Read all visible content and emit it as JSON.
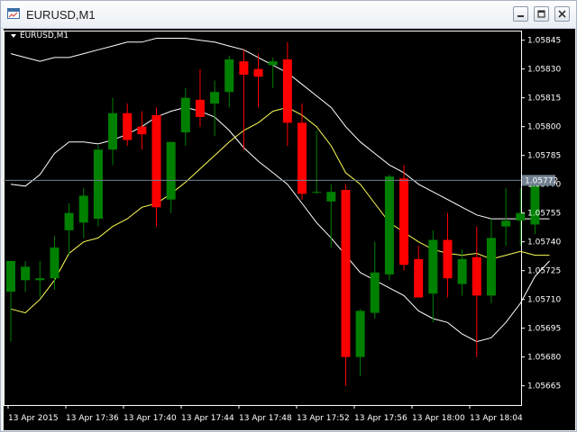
{
  "window": {
    "title": "EURUSD,M1",
    "icon": "chart-window-icon",
    "controls": [
      "minimize-icon",
      "maximize-icon",
      "close-icon"
    ]
  },
  "chart": {
    "symbol_label": "EURUSD,M1",
    "bid_line_value": "1.05772",
    "colors": {
      "background": "#000000",
      "bull": "#008000",
      "bear": "#ff0000",
      "indicator_white": "#ffffff",
      "indicator_yellow": "#ffff55",
      "axis_text": "#ffffff",
      "bid_line": "#708090"
    }
  },
  "chart_data": {
    "type": "candlestick",
    "y_ticks": [
      "1.05845",
      "1.05830",
      "1.05815",
      "1.05800",
      "1.05785",
      "1.05770",
      "1.05755",
      "1.05740",
      "1.05725",
      "1.05710",
      "1.05695",
      "1.05680",
      "1.05665"
    ],
    "x_ticks": [
      "13 Apr 2015",
      "13 Apr 17:36",
      "13 Apr 17:40",
      "13 Apr 17:44",
      "13 Apr 17:48",
      "13 Apr 17:52",
      "13 Apr 17:56",
      "13 Apr 18:00",
      "13 Apr 18:04"
    ],
    "ylim": [
      1.05655,
      1.0585
    ],
    "candles": [
      {
        "o": 1.05714,
        "h": 1.0573,
        "l": 1.05688,
        "c": 1.0573
      },
      {
        "o": 1.0572,
        "h": 1.0573,
        "l": 1.05714,
        "c": 1.05727
      },
      {
        "o": 1.0572,
        "h": 1.0573,
        "l": 1.05711,
        "c": 1.05721
      },
      {
        "o": 1.05721,
        "h": 1.05743,
        "l": 1.05715,
        "c": 1.05737
      },
      {
        "o": 1.05746,
        "h": 1.0576,
        "l": 1.05733,
        "c": 1.05755
      },
      {
        "o": 1.0575,
        "h": 1.05768,
        "l": 1.05742,
        "c": 1.05764
      },
      {
        "o": 1.05752,
        "h": 1.0579,
        "l": 1.05748,
        "c": 1.05788
      },
      {
        "o": 1.05788,
        "h": 1.05815,
        "l": 1.0578,
        "c": 1.05807
      },
      {
        "o": 1.05807,
        "h": 1.05812,
        "l": 1.0579,
        "c": 1.05793
      },
      {
        "o": 1.058,
        "h": 1.05808,
        "l": 1.05788,
        "c": 1.05796
      },
      {
        "o": 1.05806,
        "h": 1.0581,
        "l": 1.05748,
        "c": 1.05758
      },
      {
        "o": 1.05762,
        "h": 1.05792,
        "l": 1.05755,
        "c": 1.05792
      },
      {
        "o": 1.05797,
        "h": 1.0582,
        "l": 1.0579,
        "c": 1.05815
      },
      {
        "o": 1.05814,
        "h": 1.0583,
        "l": 1.058,
        "c": 1.05805
      },
      {
        "o": 1.05812,
        "h": 1.05824,
        "l": 1.05795,
        "c": 1.05818
      },
      {
        "o": 1.05818,
        "h": 1.05837,
        "l": 1.0581,
        "c": 1.05835
      },
      {
        "o": 1.05834,
        "h": 1.0584,
        "l": 1.05788,
        "c": 1.05827
      },
      {
        "o": 1.0583,
        "h": 1.05838,
        "l": 1.0581,
        "c": 1.05826
      },
      {
        "o": 1.05832,
        "h": 1.05836,
        "l": 1.0582,
        "c": 1.05834
      },
      {
        "o": 1.05835,
        "h": 1.05844,
        "l": 1.0579,
        "c": 1.05802
      },
      {
        "o": 1.05802,
        "h": 1.05812,
        "l": 1.05762,
        "c": 1.05765
      },
      {
        "o": 1.05766,
        "h": 1.05798,
        "l": 1.05765,
        "c": 1.05766
      },
      {
        "o": 1.05761,
        "h": 1.0577,
        "l": 1.05737,
        "c": 1.05766
      },
      {
        "o": 1.05767,
        "h": 1.0577,
        "l": 1.05665,
        "c": 1.0568
      },
      {
        "o": 1.0568,
        "h": 1.05705,
        "l": 1.0567,
        "c": 1.05704
      },
      {
        "o": 1.05703,
        "h": 1.0574,
        "l": 1.057,
        "c": 1.05724
      },
      {
        "o": 1.05723,
        "h": 1.05775,
        "l": 1.0572,
        "c": 1.05774
      },
      {
        "o": 1.05773,
        "h": 1.0578,
        "l": 1.05725,
        "c": 1.05728
      },
      {
        "o": 1.05731,
        "h": 1.05738,
        "l": 1.05711,
        "c": 1.05711
      },
      {
        "o": 1.05713,
        "h": 1.05746,
        "l": 1.05698,
        "c": 1.05741
      },
      {
        "o": 1.05741,
        "h": 1.05755,
        "l": 1.05711,
        "c": 1.05721
      },
      {
        "o": 1.05718,
        "h": 1.05736,
        "l": 1.05712,
        "c": 1.05731
      },
      {
        "o": 1.05732,
        "h": 1.05748,
        "l": 1.0568,
        "c": 1.05712
      },
      {
        "o": 1.05712,
        "h": 1.05752,
        "l": 1.05708,
        "c": 1.05742
      },
      {
        "o": 1.05748,
        "h": 1.05768,
        "l": 1.05738,
        "c": 1.05751
      },
      {
        "o": 1.05751,
        "h": 1.05768,
        "l": 1.05738,
        "c": 1.05755
      },
      {
        "o": 1.05749,
        "h": 1.05773,
        "l": 1.05744,
        "c": 1.05773
      }
    ],
    "indicators": [
      {
        "color": "#ffffff",
        "points": [
          [
            0,
            1.0577
          ],
          [
            1,
            1.05769
          ],
          [
            2,
            1.05775
          ],
          [
            3,
            1.05786
          ],
          [
            4,
            1.05792
          ],
          [
            5,
            1.05792
          ],
          [
            6,
            1.05791
          ],
          [
            7,
            1.05793
          ],
          [
            8,
            1.05796
          ],
          [
            9,
            1.058
          ],
          [
            10,
            1.05805
          ],
          [
            11,
            1.05808
          ],
          [
            12,
            1.0581
          ],
          [
            13,
            1.05808
          ],
          [
            14,
            1.05805
          ],
          [
            15,
            1.05798
          ],
          [
            16,
            1.05789
          ],
          [
            17,
            1.05782
          ],
          [
            18,
            1.05776
          ],
          [
            19,
            1.0577
          ],
          [
            20,
            1.0576
          ],
          [
            21,
            1.0575
          ],
          [
            22,
            1.05742
          ],
          [
            23,
            1.05733
          ],
          [
            24,
            1.05724
          ],
          [
            25,
            1.0572
          ],
          [
            26,
            1.05716
          ],
          [
            27,
            1.05712
          ],
          [
            28,
            1.05704
          ],
          [
            29,
            1.057
          ],
          [
            30,
            1.05698
          ],
          [
            31,
            1.05692
          ],
          [
            32,
            1.05688
          ],
          [
            33,
            1.0569
          ],
          [
            34,
            1.05698
          ],
          [
            35,
            1.05708
          ],
          [
            36,
            1.05722
          ],
          [
            37,
            1.0573
          ]
        ]
      },
      {
        "color": "#ffff55",
        "points": [
          [
            0,
            1.05705
          ],
          [
            1,
            1.05703
          ],
          [
            2,
            1.0571
          ],
          [
            3,
            1.0572
          ],
          [
            4,
            1.05734
          ],
          [
            5,
            1.0574
          ],
          [
            6,
            1.05742
          ],
          [
            7,
            1.05748
          ],
          [
            8,
            1.05752
          ],
          [
            9,
            1.05758
          ],
          [
            10,
            1.0576
          ],
          [
            11,
            1.05765
          ],
          [
            12,
            1.05771
          ],
          [
            13,
            1.05778
          ],
          [
            14,
            1.05785
          ],
          [
            15,
            1.05792
          ],
          [
            16,
            1.05798
          ],
          [
            17,
            1.05802
          ],
          [
            18,
            1.05808
          ],
          [
            19,
            1.0581
          ],
          [
            20,
            1.05806
          ],
          [
            21,
            1.058
          ],
          [
            22,
            1.0579
          ],
          [
            23,
            1.05776
          ],
          [
            24,
            1.0577
          ],
          [
            25,
            1.0576
          ],
          [
            26,
            1.0575
          ],
          [
            27,
            1.05745
          ],
          [
            28,
            1.0574
          ],
          [
            29,
            1.05736
          ],
          [
            30,
            1.05734
          ],
          [
            31,
            1.05733
          ],
          [
            32,
            1.05734
          ],
          [
            33,
            1.05731
          ],
          [
            34,
            1.05733
          ],
          [
            35,
            1.05735
          ],
          [
            36,
            1.05733
          ],
          [
            37,
            1.05733
          ]
        ]
      },
      {
        "color": "#ffffff",
        "points": [
          [
            0,
            1.05838
          ],
          [
            1,
            1.05836
          ],
          [
            2,
            1.05834
          ],
          [
            3,
            1.05836
          ],
          [
            4,
            1.05836
          ],
          [
            5,
            1.05838
          ],
          [
            6,
            1.0584
          ],
          [
            7,
            1.05842
          ],
          [
            8,
            1.05844
          ],
          [
            9,
            1.05844
          ],
          [
            10,
            1.05846
          ],
          [
            11,
            1.05846
          ],
          [
            12,
            1.05846
          ],
          [
            13,
            1.05845
          ],
          [
            14,
            1.05844
          ],
          [
            15,
            1.05842
          ],
          [
            16,
            1.0584
          ],
          [
            17,
            1.05836
          ],
          [
            18,
            1.05832
          ],
          [
            19,
            1.05828
          ],
          [
            20,
            1.05822
          ],
          [
            21,
            1.05816
          ],
          [
            22,
            1.0581
          ],
          [
            23,
            1.058
          ],
          [
            24,
            1.05792
          ],
          [
            25,
            1.05786
          ],
          [
            26,
            1.0578
          ],
          [
            27,
            1.05776
          ],
          [
            28,
            1.0577
          ],
          [
            29,
            1.05766
          ],
          [
            30,
            1.05762
          ],
          [
            31,
            1.05758
          ],
          [
            32,
            1.05754
          ],
          [
            33,
            1.05752
          ],
          [
            34,
            1.05752
          ],
          [
            35,
            1.05752
          ],
          [
            36,
            1.05752
          ],
          [
            37,
            1.05752
          ]
        ]
      }
    ]
  }
}
